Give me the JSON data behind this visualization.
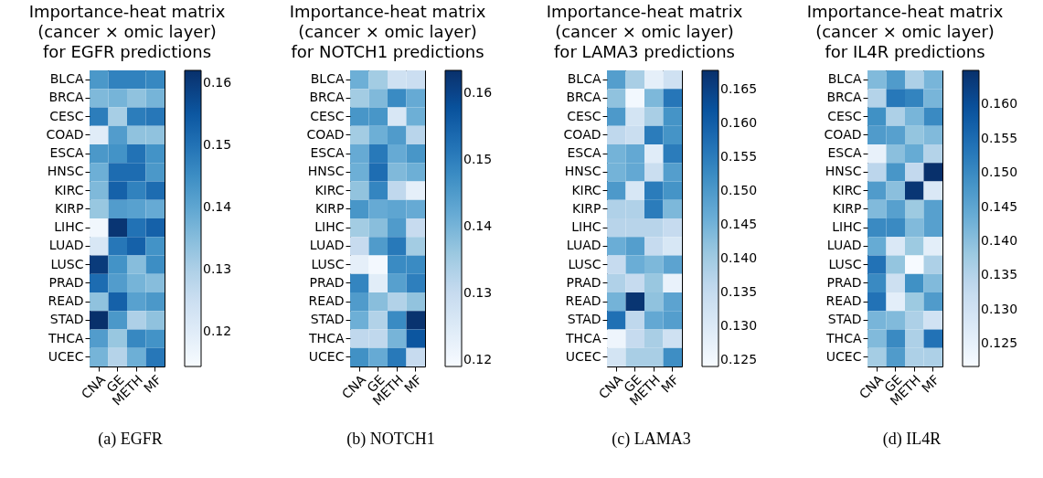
{
  "chart_data": [
    {
      "type": "heatmap",
      "title": "Importance-heat matrix\n(cancer × omic layer)\nfor EGFR predictions",
      "categories": [
        "CNA",
        "GE",
        "METH",
        "MF"
      ],
      "y_categories": [
        "BLCA",
        "BRCA",
        "CESC",
        "COAD",
        "ESCA",
        "HNSC",
        "KIRC",
        "KIRP",
        "LIHC",
        "LUAD",
        "LUSC",
        "PRAD",
        "READ",
        "STAD",
        "THCA",
        "UCEC"
      ],
      "cells": [
        [
          0.143,
          0.147,
          0.147,
          0.146
        ],
        [
          0.136,
          0.137,
          0.134,
          0.137
        ],
        [
          0.148,
          0.131,
          0.148,
          0.149
        ],
        [
          0.12,
          0.142,
          0.134,
          0.134
        ],
        [
          0.143,
          0.144,
          0.15,
          0.144
        ],
        [
          0.138,
          0.151,
          0.151,
          0.143
        ],
        [
          0.136,
          0.153,
          0.147,
          0.151
        ],
        [
          0.133,
          0.142,
          0.141,
          0.139
        ],
        [
          0.116,
          0.161,
          0.15,
          0.153
        ],
        [
          0.122,
          0.149,
          0.153,
          0.144
        ],
        [
          0.16,
          0.144,
          0.135,
          0.145
        ],
        [
          0.151,
          0.142,
          0.137,
          0.135
        ],
        [
          0.134,
          0.153,
          0.141,
          0.143
        ],
        [
          0.162,
          0.143,
          0.13,
          0.134
        ],
        [
          0.142,
          0.133,
          0.146,
          0.144
        ],
        [
          0.137,
          0.129,
          0.138,
          0.149
        ]
      ],
      "clim": [
        0.1145,
        0.162
      ],
      "cticks": [
        0.12,
        0.13,
        0.14,
        0.15,
        0.16
      ],
      "annotations": [
        "(a) EGFR"
      ]
    },
    {
      "type": "heatmap",
      "title": "Importance-heat matrix\n(cancer × omic layer)\nfor NOTCH1 predictions",
      "categories": [
        "CNA",
        "GE",
        "METH",
        "MF"
      ],
      "y_categories": [
        "BLCA",
        "BRCA",
        "CESC",
        "COAD",
        "ESCA",
        "HNSC",
        "KIRC",
        "KIRP",
        "LIHC",
        "LUAD",
        "LUSC",
        "PRAD",
        "READ",
        "STAD",
        "THCA",
        "UCEC"
      ],
      "cells": [
        [
          0.141,
          0.135,
          0.128,
          0.129
        ],
        [
          0.135,
          0.139,
          0.148,
          0.142
        ],
        [
          0.146,
          0.146,
          0.126,
          0.141
        ],
        [
          0.135,
          0.141,
          0.145,
          0.132
        ],
        [
          0.142,
          0.151,
          0.142,
          0.146
        ],
        [
          0.141,
          0.153,
          0.139,
          0.141
        ],
        [
          0.137,
          0.149,
          0.131,
          0.123
        ],
        [
          0.146,
          0.142,
          0.143,
          0.142
        ],
        [
          0.135,
          0.138,
          0.145,
          0.13
        ],
        [
          0.13,
          0.145,
          0.151,
          0.135
        ],
        [
          0.123,
          0.12,
          0.148,
          0.148
        ],
        [
          0.149,
          0.124,
          0.144,
          0.15
        ],
        [
          0.145,
          0.138,
          0.133,
          0.137
        ],
        [
          0.141,
          0.133,
          0.148,
          0.163
        ],
        [
          0.131,
          0.131,
          0.14,
          0.157
        ],
        [
          0.147,
          0.142,
          0.151,
          0.13
        ]
      ],
      "clim": [
        0.119,
        0.1635
      ],
      "cticks": [
        0.12,
        0.13,
        0.14,
        0.15,
        0.16
      ],
      "annotations": [
        "(b) NOTCH1"
      ]
    },
    {
      "type": "heatmap",
      "title": "Importance-heat matrix\n(cancer × omic layer)\nfor LAMA3 predictions",
      "categories": [
        "CNA",
        "GE",
        "METH",
        "MF"
      ],
      "y_categories": [
        "BLCA",
        "BRCA",
        "CESC",
        "COAD",
        "ESCA",
        "HNSC",
        "KIRC",
        "KIRP",
        "LIHC",
        "LUAD",
        "LUSC",
        "PRAD",
        "READ",
        "STAD",
        "THCA",
        "UCEC"
      ],
      "cells": [
        [
          0.149,
          0.139,
          0.128,
          0.133
        ],
        [
          0.142,
          0.125,
          0.144,
          0.156
        ],
        [
          0.15,
          0.132,
          0.139,
          0.151
        ],
        [
          0.136,
          0.134,
          0.155,
          0.151
        ],
        [
          0.145,
          0.147,
          0.129,
          0.155
        ],
        [
          0.145,
          0.147,
          0.134,
          0.149
        ],
        [
          0.15,
          0.131,
          0.155,
          0.151
        ],
        [
          0.138,
          0.138,
          0.155,
          0.144
        ],
        [
          0.137,
          0.137,
          0.137,
          0.135
        ],
        [
          0.146,
          0.149,
          0.135,
          0.131
        ],
        [
          0.135,
          0.146,
          0.144,
          0.148
        ],
        [
          0.138,
          0.135,
          0.141,
          0.127
        ],
        [
          0.145,
          0.167,
          0.142,
          0.148
        ],
        [
          0.157,
          0.136,
          0.147,
          0.149
        ],
        [
          0.126,
          0.135,
          0.139,
          0.133
        ],
        [
          0.132,
          0.139,
          0.139,
          0.152
        ]
      ],
      "clim": [
        0.124,
        0.1678
      ],
      "cticks": [
        0.125,
        {
          "value": 0.13,
          "label": "0.130"
        },
        0.135,
        {
          "value": 0.14,
          "label": "0.140"
        },
        0.145,
        {
          "value": 0.15,
          "label": "0.150"
        },
        0.155,
        {
          "value": 0.16,
          "label": "0.160"
        },
        0.165
      ],
      "annotations": [
        "(c) LAMA3"
      ]
    },
    {
      "type": "heatmap",
      "title": "Importance-heat matrix\n(cancer × omic layer)\nfor IL4R predictions",
      "categories": [
        "CNA",
        "GE",
        "METH",
        "MF"
      ],
      "y_categories": [
        "BLCA",
        "BRCA",
        "CESC",
        "COAD",
        "ESCA",
        "HNSC",
        "KIRC",
        "KIRP",
        "LIHC",
        "LUAD",
        "LUSC",
        "PRAD",
        "READ",
        "STAD",
        "THCA",
        "UCEC"
      ],
      "cells": [
        [
          0.141,
          0.147,
          0.136,
          0.142
        ],
        [
          0.135,
          0.153,
          0.151,
          0.142
        ],
        [
          0.149,
          0.136,
          0.142,
          0.15
        ],
        [
          0.147,
          0.146,
          0.139,
          0.141
        ],
        [
          0.125,
          0.14,
          0.144,
          0.135
        ],
        [
          0.134,
          0.148,
          0.133,
          0.165
        ],
        [
          0.147,
          0.14,
          0.164,
          0.128
        ],
        [
          0.141,
          0.146,
          0.138,
          0.146
        ],
        [
          0.15,
          0.15,
          0.141,
          0.146
        ],
        [
          0.144,
          0.128,
          0.138,
          0.126
        ],
        [
          0.154,
          0.139,
          0.122,
          0.136
        ],
        [
          0.15,
          0.131,
          0.149,
          0.141
        ],
        [
          0.154,
          0.126,
          0.138,
          0.147
        ],
        [
          0.142,
          0.141,
          0.136,
          0.13
        ],
        [
          0.141,
          0.15,
          0.136,
          0.154
        ],
        [
          0.137,
          0.147,
          0.136,
          0.136
        ]
      ],
      "clim": [
        0.1217,
        0.165
      ],
      "cticks": [
        0.125,
        {
          "value": 0.13,
          "label": "0.130"
        },
        0.135,
        {
          "value": 0.14,
          "label": "0.140"
        },
        0.145,
        {
          "value": 0.15,
          "label": "0.150"
        },
        0.155,
        {
          "value": 0.16,
          "label": "0.160"
        }
      ],
      "annotations": [
        "(d) IL4R"
      ]
    }
  ]
}
